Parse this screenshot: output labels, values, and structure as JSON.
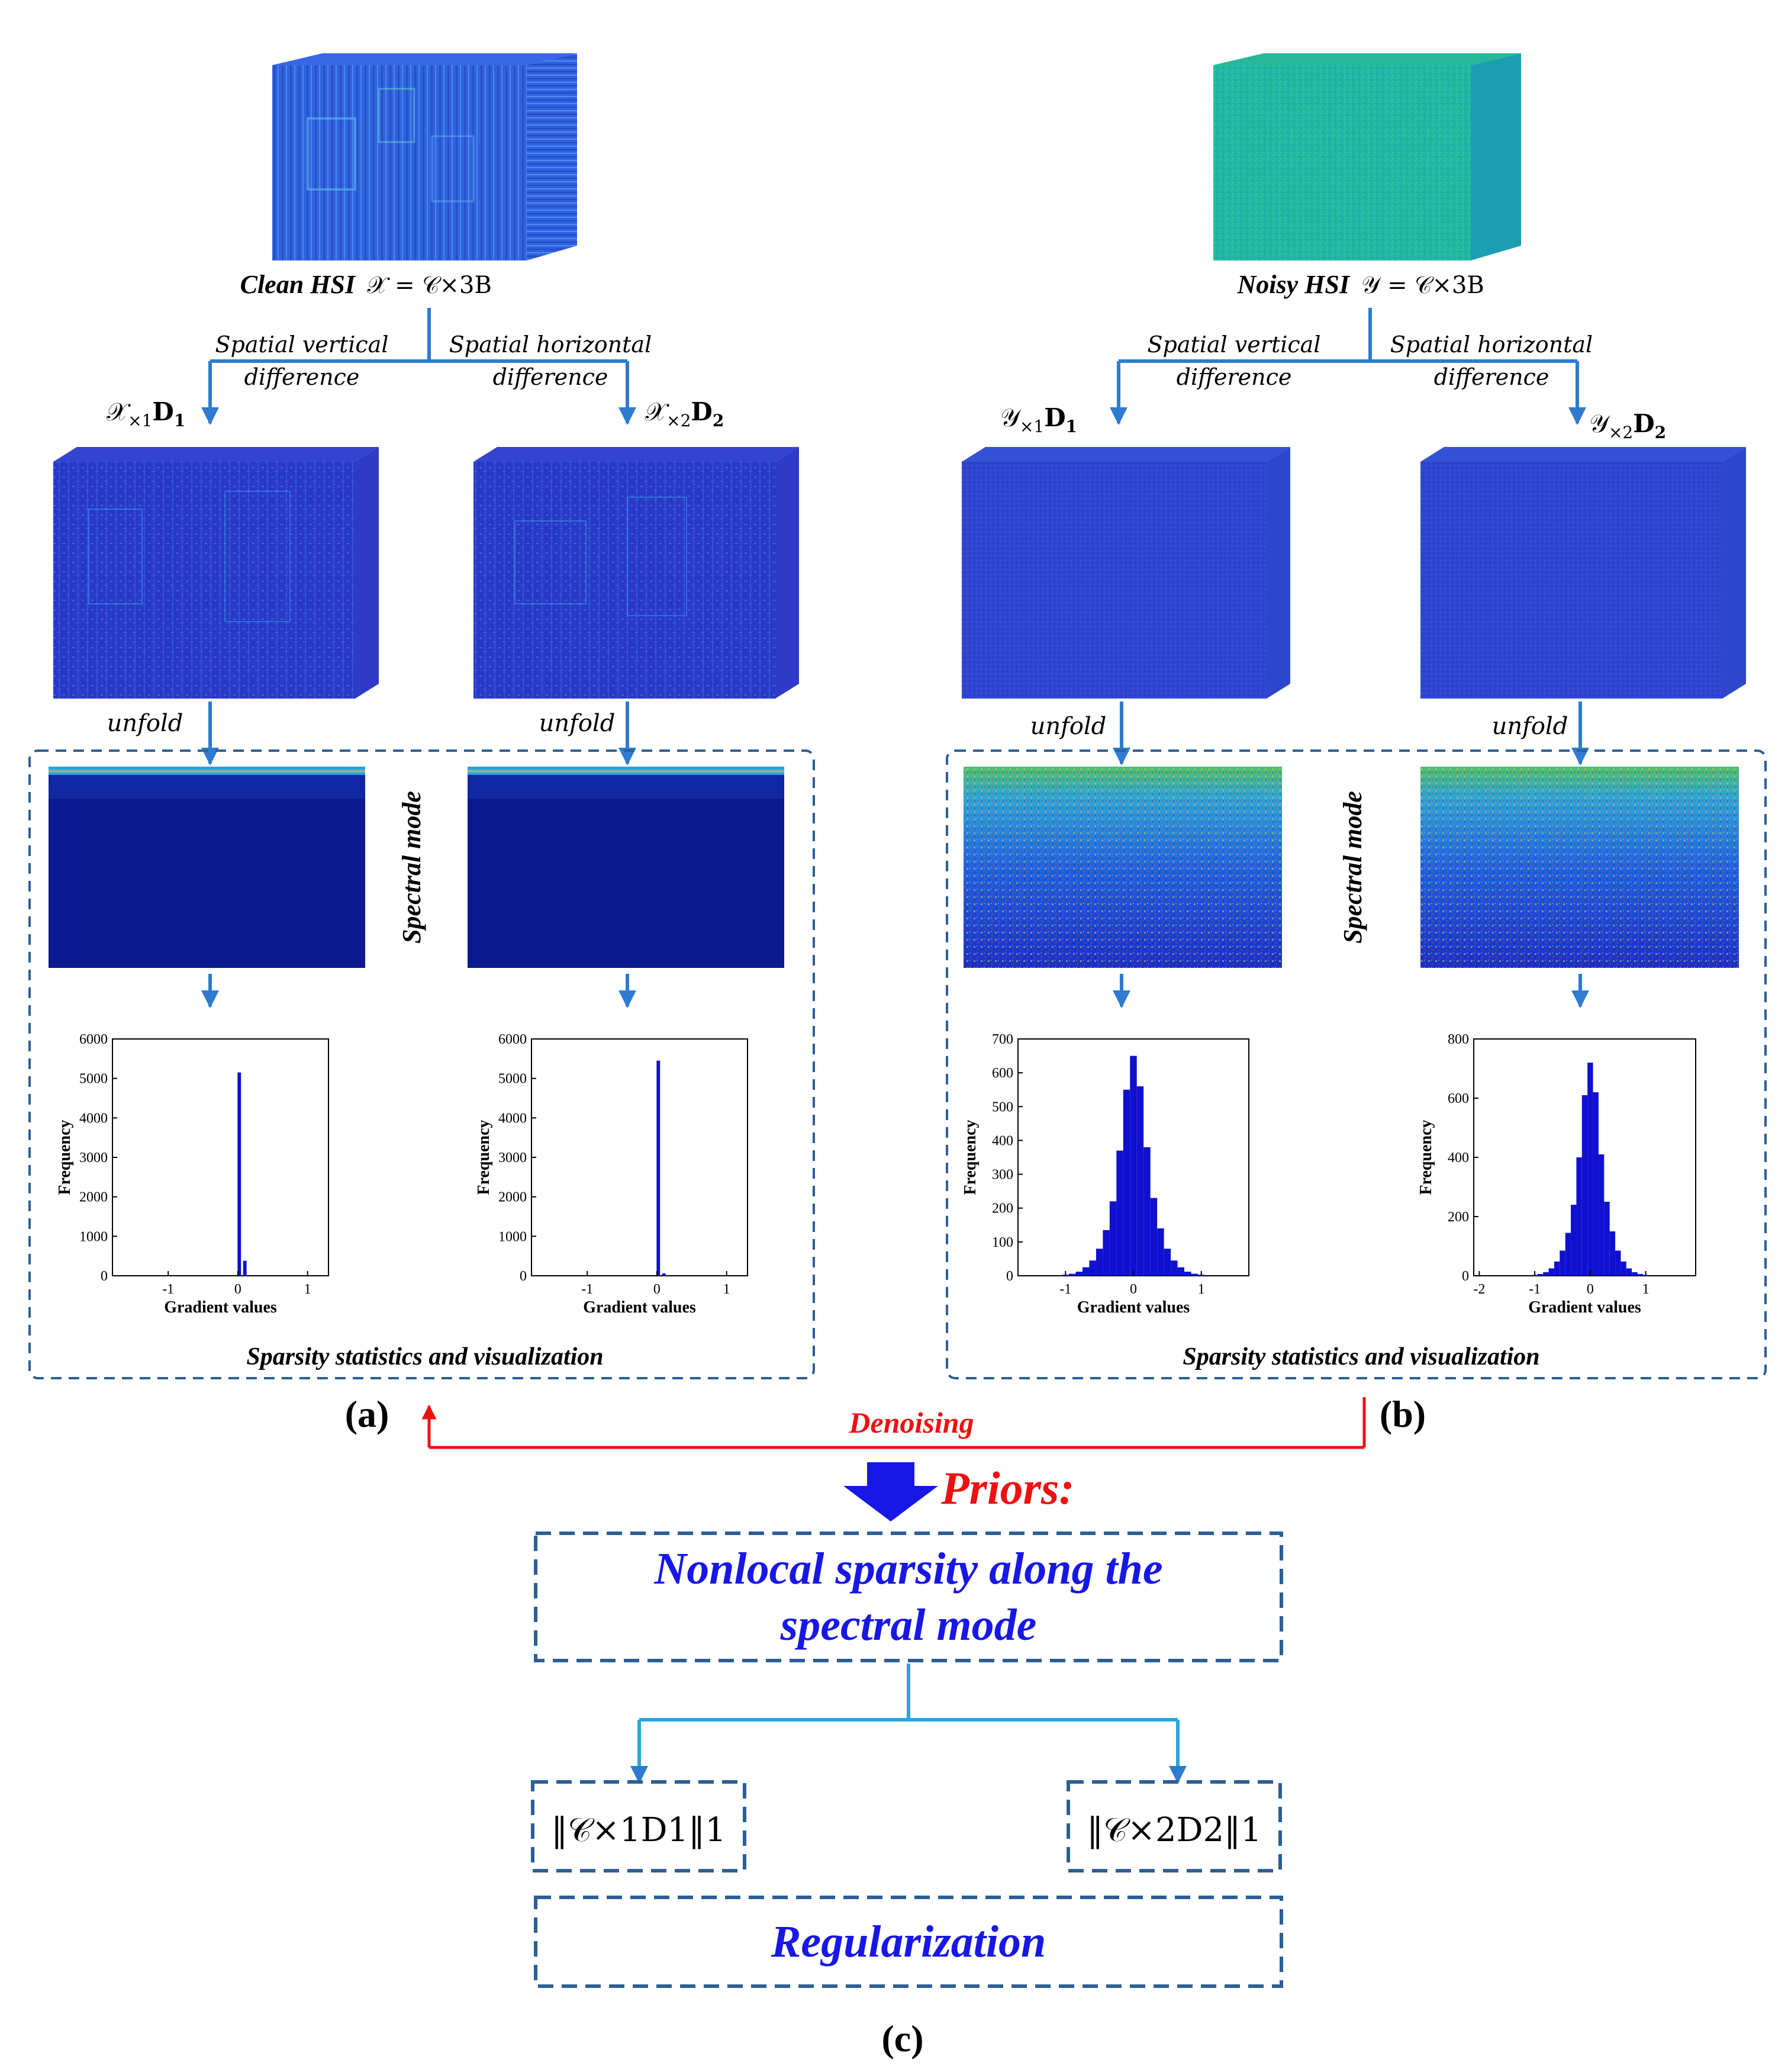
{
  "panel_a": {
    "clean_label": "Clean HSI",
    "clean_formula": "𝒳 = 𝒞×3B",
    "branch_vertical_1": "Spatial vertical",
    "branch_vertical_2": "difference",
    "branch_horizontal_1": "Spatial horizontal",
    "branch_horizontal_2": "difference",
    "left_formula_main": "𝒳",
    "left_formula_sub": "×1",
    "left_formula_op": "D",
    "left_formula_opsub": "1",
    "right_formula_main": "𝒳",
    "right_formula_sub": "×2",
    "right_formula_op": "D",
    "right_formula_opsub": "2",
    "unfold": "unfold",
    "spectral_mode": "Spectral mode",
    "caption": "Sparsity statistics and visualization",
    "panel_label": "(a)"
  },
  "panel_b": {
    "noisy_label": "Noisy HSI",
    "noisy_formula": "𝒴 = 𝒞×3B",
    "branch_vertical_1": "Spatial vertical",
    "branch_vertical_2": "difference",
    "branch_horizontal_1": "Spatial horizontal",
    "branch_horizontal_2": "difference",
    "left_formula_main": "𝒴",
    "left_formula_sub": "×1",
    "left_formula_op": "D",
    "left_formula_opsub": "1",
    "right_formula_main": "𝒴",
    "right_formula_sub": "×2",
    "right_formula_op": "D",
    "right_formula_opsub": "2",
    "unfold": "unfold",
    "spectral_mode": "Spectral mode",
    "caption": "Sparsity statistics and visualization",
    "panel_label": "(b)"
  },
  "denoising_label": "Denoising",
  "priors_label": "Priors:",
  "prior_box_line1": "Nonlocal sparsity along the",
  "prior_box_line2": "spectral mode",
  "reg_left": "‖𝒞×1D1‖1",
  "reg_right": "‖𝒞×2D2‖1",
  "regularization_label": "Regularization",
  "panel_c_label": "(c)",
  "colors": {
    "arrow_blue": "#2e7bcf",
    "dash_blue": "#2b5f95",
    "prior_text": "#1717e6",
    "denoise_red": "#ee1111",
    "bar_blue": "#1010d0"
  },
  "chart_data": [
    {
      "type": "bar",
      "name": "hist-clean-vertical",
      "xlabel": "Gradient values",
      "ylabel": "Frequency",
      "xlim": [
        -1.8,
        1.3
      ],
      "ylim": [
        0,
        6000
      ],
      "yticks": [
        "0",
        "1000",
        "2000",
        "3000",
        "4000",
        "5000",
        "6000"
      ],
      "xticks": [
        "-1",
        "0",
        "1"
      ],
      "x": [
        0.02,
        0.1
      ],
      "values": [
        5150,
        380
      ]
    },
    {
      "type": "bar",
      "name": "hist-clean-horizontal",
      "xlabel": "Gradient values",
      "ylabel": "Frequency",
      "xlim": [
        -1.8,
        1.3
      ],
      "ylim": [
        0,
        6000
      ],
      "yticks": [
        "0",
        "1000",
        "2000",
        "3000",
        "4000",
        "5000",
        "6000"
      ],
      "xticks": [
        "-1",
        "0",
        "1"
      ],
      "x": [
        0.02,
        0.1
      ],
      "values": [
        5450,
        60
      ]
    },
    {
      "type": "bar",
      "name": "hist-noisy-vertical",
      "xlabel": "Gradient values",
      "ylabel": "Frequency",
      "xlim": [
        -1.7,
        1.7
      ],
      "ylim": [
        0,
        700
      ],
      "yticks": [
        "0",
        "100",
        "200",
        "300",
        "400",
        "500",
        "600",
        "700"
      ],
      "xticks": [
        "-1",
        "0",
        "1"
      ],
      "x": [
        -1.0,
        -0.9,
        -0.8,
        -0.7,
        -0.6,
        -0.5,
        -0.4,
        -0.3,
        -0.2,
        -0.1,
        0.0,
        0.1,
        0.2,
        0.3,
        0.4,
        0.5,
        0.6,
        0.7,
        0.8,
        0.9,
        1.0
      ],
      "values": [
        3,
        6,
        12,
        25,
        45,
        80,
        135,
        220,
        370,
        550,
        650,
        560,
        380,
        230,
        140,
        80,
        45,
        25,
        12,
        6,
        3
      ]
    },
    {
      "type": "bar",
      "name": "hist-noisy-horizontal",
      "xlabel": "Gradient values",
      "ylabel": "Frequency",
      "xlim": [
        -2.1,
        1.9
      ],
      "ylim": [
        0,
        800
      ],
      "yticks": [
        "0",
        "200",
        "400",
        "600",
        "800"
      ],
      "xticks": [
        "-2",
        "-1",
        "0",
        "1"
      ],
      "x": [
        -1.0,
        -0.9,
        -0.8,
        -0.7,
        -0.6,
        -0.5,
        -0.4,
        -0.3,
        -0.2,
        -0.1,
        0.0,
        0.1,
        0.2,
        0.3,
        0.4,
        0.5,
        0.6,
        0.7,
        0.8,
        0.9,
        1.0
      ],
      "values": [
        3,
        6,
        12,
        25,
        48,
        85,
        145,
        240,
        400,
        610,
        720,
        620,
        410,
        250,
        150,
        85,
        48,
        25,
        12,
        6,
        3
      ]
    }
  ]
}
